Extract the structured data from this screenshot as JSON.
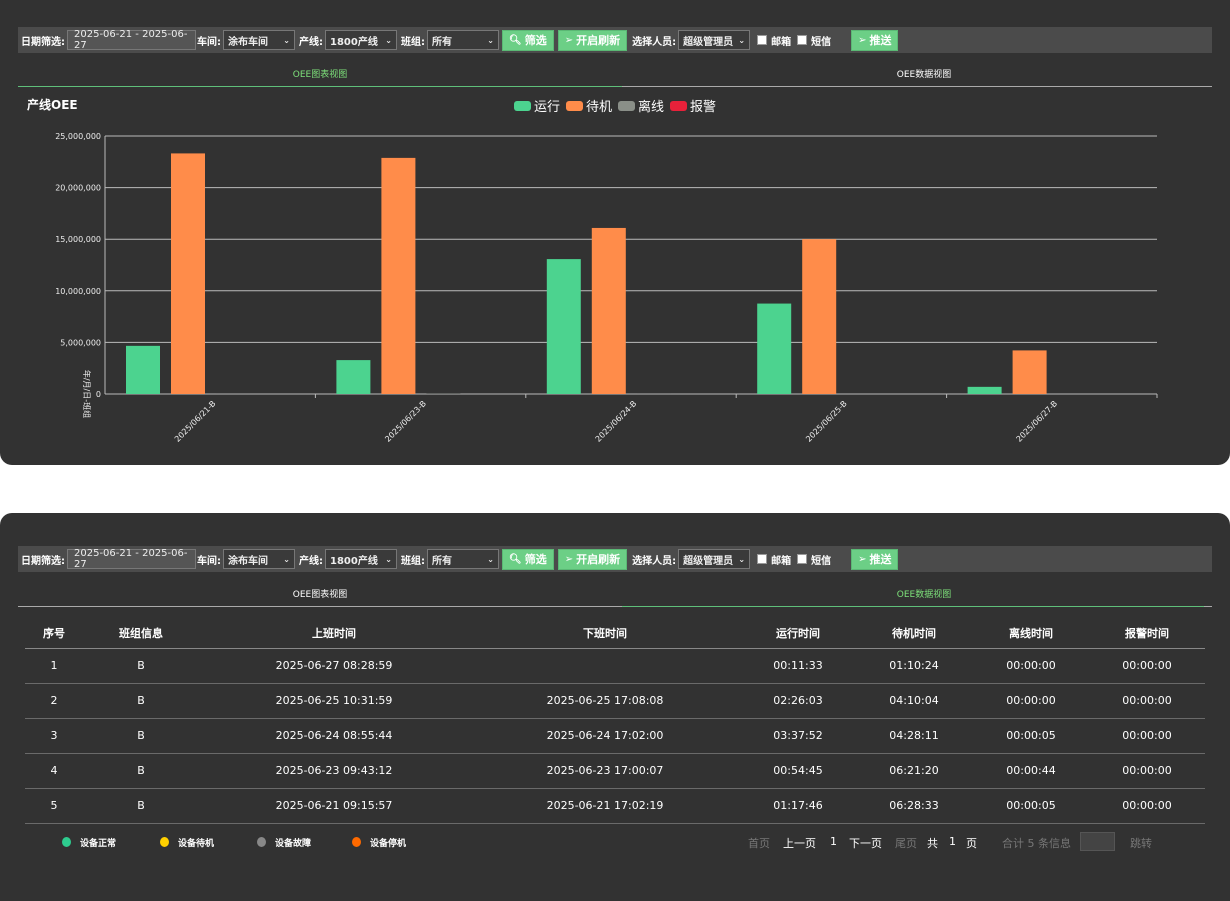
{
  "toolbar": {
    "date_label": "日期筛选:",
    "date_value": "2025-06-21 - 2025-06-27",
    "workshop_label": "车间:",
    "workshop_value": "涂布车间",
    "line_label": "产线:",
    "line_value": "1800产线",
    "team_label": "班组:",
    "team_value": "所有",
    "filter_btn": "筛选",
    "refresh_btn": "开启刷新",
    "person_label": "选择人员:",
    "person_value": "超级管理员",
    "email_label": "邮箱",
    "sms_label": "短信",
    "push_btn": "推送"
  },
  "tabs": {
    "chart": "OEE图表视图",
    "data": "OEE数据视图"
  },
  "colors": {
    "run": "#4cd38f",
    "standby": "#ff8c4a",
    "offline": "#8a8f88",
    "alarm": "#e8213a",
    "accent": "#6ccf86"
  },
  "chart_data": {
    "type": "bar",
    "title": "产线OEE",
    "ylabel": "年/月/日-班组",
    "xlabel": "",
    "ylim": [
      0,
      25000000
    ],
    "yticks": [
      "0",
      "5,000,000",
      "10,000,000",
      "15,000,000",
      "20,000,000",
      "25,000,000"
    ],
    "grid": true,
    "legend": "top-center",
    "categories": [
      "2025/06/21-B",
      "2025/06/23-B",
      "2025/06/24-B",
      "2025/06/25-B",
      "2025/06/27-B"
    ],
    "series": [
      {
        "name": "运行",
        "values": [
          4666000,
          3285000,
          13072000,
          8763000,
          693000
        ]
      },
      {
        "name": "待机",
        "values": [
          23313000,
          22880000,
          16091000,
          15004000,
          4224000
        ]
      },
      {
        "name": "离线",
        "values": [
          5000,
          44000,
          5000,
          0,
          0
        ]
      },
      {
        "name": "报警",
        "values": [
          0,
          0,
          0,
          0,
          0
        ]
      }
    ]
  },
  "table": {
    "headers": [
      "序号",
      "班组信息",
      "上班时间",
      "下班时间",
      "运行时间",
      "待机时间",
      "离线时间",
      "报警时间"
    ],
    "rows": [
      [
        "1",
        "B",
        "2025-06-27 08:28:59",
        "",
        "00:11:33",
        "01:10:24",
        "00:00:00",
        "00:00:00"
      ],
      [
        "2",
        "B",
        "2025-06-25 10:31:59",
        "2025-06-25 17:08:08",
        "02:26:03",
        "04:10:04",
        "00:00:00",
        "00:00:00"
      ],
      [
        "3",
        "B",
        "2025-06-24 08:55:44",
        "2025-06-24 17:02:00",
        "03:37:52",
        "04:28:11",
        "00:00:05",
        "00:00:00"
      ],
      [
        "4",
        "B",
        "2025-06-23 09:43:12",
        "2025-06-23 17:00:07",
        "00:54:45",
        "06:21:20",
        "00:00:44",
        "00:00:00"
      ],
      [
        "5",
        "B",
        "2025-06-21 09:15:57",
        "2025-06-21 17:02:19",
        "01:17:46",
        "06:28:33",
        "00:00:05",
        "00:00:00"
      ]
    ]
  },
  "status_legend": [
    {
      "label": "设备正常",
      "color": "#2ecc8f"
    },
    {
      "label": "设备待机",
      "color": "#ffd000"
    },
    {
      "label": "设备故障",
      "color": "#888888"
    },
    {
      "label": "设备停机",
      "color": "#ff6a00"
    }
  ],
  "pager": {
    "first": "首页",
    "prev": "上一页",
    "current": "1",
    "next": "下一页",
    "last": "尾页",
    "total_prefix": "共",
    "total_pages": "1",
    "total_suffix": "页",
    "summary": "合计 5 条信息",
    "jump": "跳转"
  }
}
